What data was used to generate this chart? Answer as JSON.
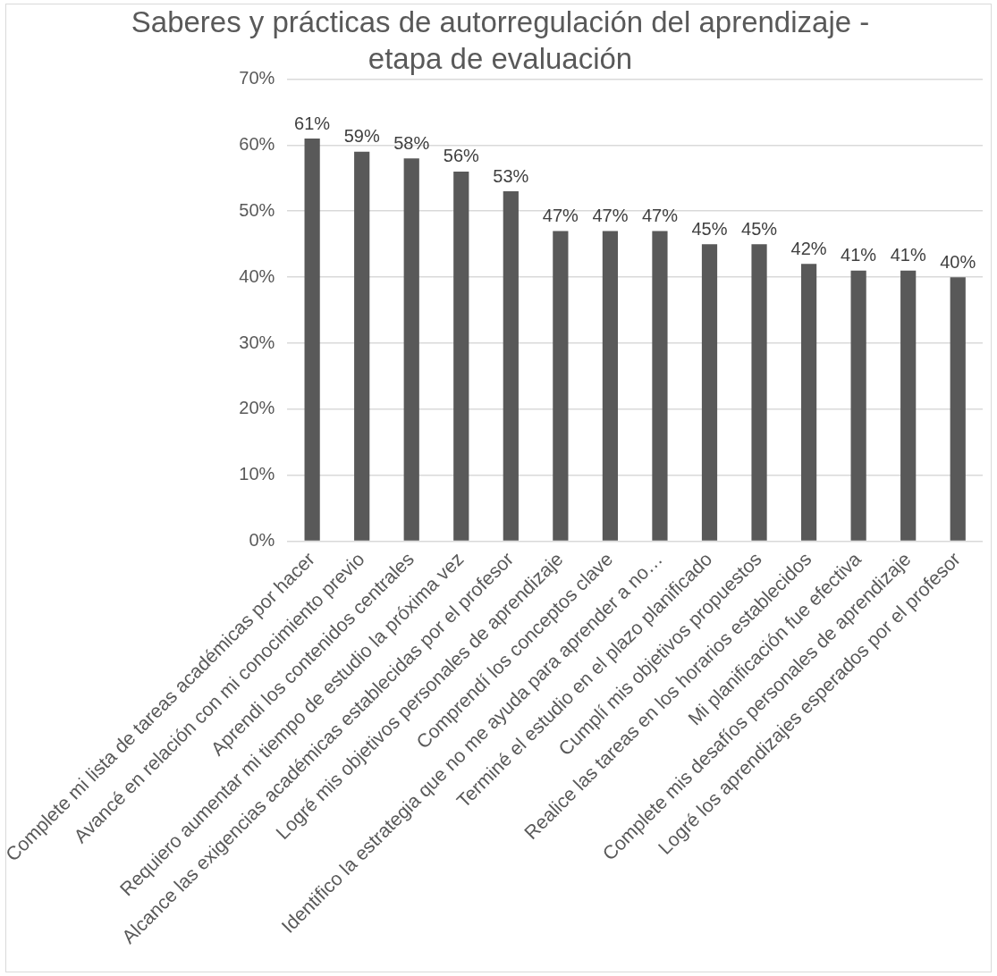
{
  "chart_data": {
    "type": "bar",
    "title": "Saberes y prácticas de autorregulación del aprendizaje -\netapa de evaluación",
    "categories": [
      "Complete mi lista de tareas académicas por hacer",
      "Avancé en relación con mi conocimiento previo",
      "Aprendi los contenidos centrales",
      "Requiero aumentar mi tiempo de estudio la próxima vez",
      "Alcance las exigencias académicas establecidas por el profesor",
      "Logré mis objetivos personales de aprendizaje",
      "Comprendí los conceptos clave",
      "Identifico la estrategia que no me ayuda para aprender a no…",
      "Terminé el estudio en el plazo planificado",
      "Cumplí mis objetivos propuestos",
      "Realice las tareas en los horarios establecidos",
      "Mi planificación fue efectiva",
      "Complete mis desafíos personales de aprendizaje",
      "Logré los aprendizajes esperados por el profesor"
    ],
    "values": [
      61,
      59,
      58,
      56,
      53,
      47,
      47,
      47,
      45,
      45,
      42,
      41,
      41,
      40
    ],
    "value_labels": [
      "61%",
      "59%",
      "58%",
      "56%",
      "53%",
      "47%",
      "47%",
      "47%",
      "45%",
      "45%",
      "42%",
      "41%",
      "41%",
      "40%"
    ],
    "color": "#595959",
    "ylim": [
      0,
      70
    ],
    "yticks": [
      {
        "value": 0,
        "label": "0%"
      },
      {
        "value": 10,
        "label": "10%"
      },
      {
        "value": 20,
        "label": "20%"
      },
      {
        "value": 30,
        "label": "30%"
      },
      {
        "value": 40,
        "label": "40%"
      },
      {
        "value": 50,
        "label": "50%"
      },
      {
        "value": 60,
        "label": "60%"
      },
      {
        "value": 70,
        "label": "70%"
      }
    ],
    "grid": "y"
  }
}
